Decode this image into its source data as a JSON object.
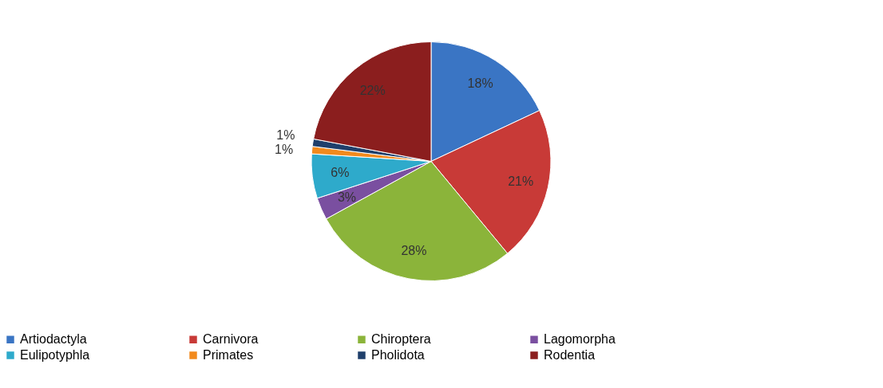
{
  "chart_data": {
    "type": "pie",
    "categories": [
      "Artiodactyla",
      "Carnivora",
      "Chiroptera",
      "Lagomorpha",
      "Eulipotyphla",
      "Primates",
      "Pholidota",
      "Rodentia"
    ],
    "values": [
      18,
      21,
      28,
      3,
      6,
      1,
      1,
      22
    ],
    "value_labels": [
      "18%",
      "21%",
      "28%",
      "3%",
      "6%",
      "1%",
      "1%",
      "22%"
    ],
    "colors": [
      "#3a75c4",
      "#c83a37",
      "#8bb43a",
      "#7a4fa0",
      "#2eaacb",
      "#f28a1d",
      "#1f3f6b",
      "#8b1e1e"
    ],
    "legend": "bottom"
  }
}
